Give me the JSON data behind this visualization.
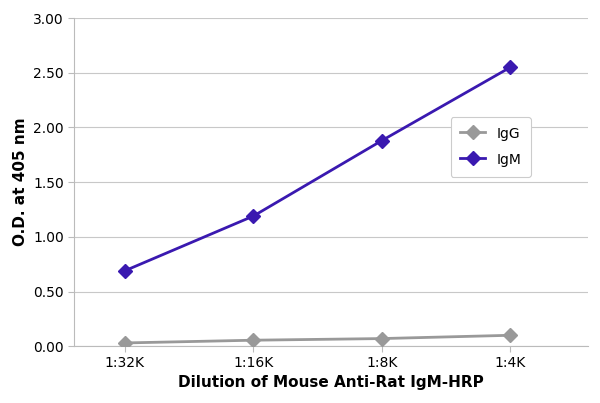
{
  "x_labels": [
    "1:32K",
    "1:16K",
    "1:8K",
    "1:4K"
  ],
  "x_positions": [
    0,
    1,
    2,
    3
  ],
  "igm_values": [
    0.69,
    1.19,
    1.88,
    2.55
  ],
  "igg_values": [
    0.03,
    0.055,
    0.07,
    0.1
  ],
  "igm_color": "#3a19b0",
  "igg_color": "#999999",
  "igm_label": "IgM",
  "igg_label": "IgG",
  "xlabel": "Dilution of Mouse Anti-Rat IgM-HRP",
  "ylabel": "O.D. at 405 nm",
  "ylim": [
    0.0,
    3.0
  ],
  "yticks": [
    0.0,
    0.5,
    1.0,
    1.5,
    2.0,
    2.5,
    3.0
  ],
  "line_width": 2.0,
  "marker": "D",
  "marker_size": 7,
  "grid_color": "#c8c8c8",
  "bg_color": "#ffffff",
  "legend_fontsize": 10,
  "axis_label_fontsize": 11,
  "tick_fontsize": 10
}
